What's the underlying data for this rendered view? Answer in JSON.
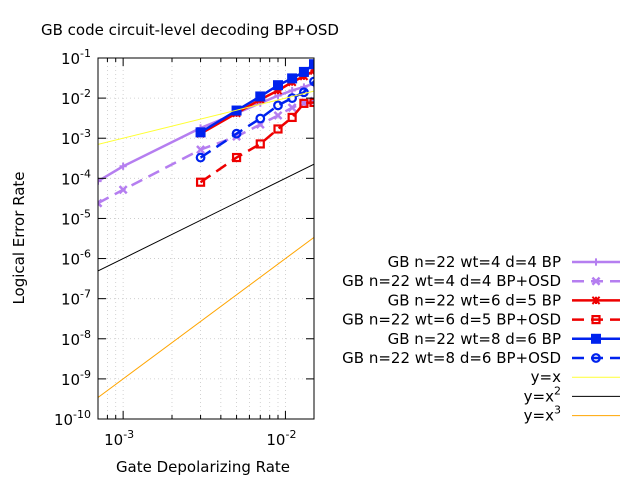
{
  "chart_data": {
    "type": "line",
    "title": "GB code circuit-level decoding BP+OSD",
    "xlabel": "Gate Depolarizing Rate",
    "ylabel": "Logical Error Rate",
    "xscale": "log",
    "yscale": "log",
    "xlim": [
      0.0007,
      0.015
    ],
    "ylim": [
      1e-10,
      0.1
    ],
    "grid": true,
    "legend_position": "right",
    "x_ticks": [
      {
        "value": 0.001,
        "base": "10",
        "exp": "-3"
      },
      {
        "value": 0.01,
        "base": "10",
        "exp": "-2"
      }
    ],
    "y_ticks": [
      {
        "value": 1e-10,
        "base": "10",
        "exp": "-10"
      },
      {
        "value": 1e-09,
        "base": "10",
        "exp": "-9"
      },
      {
        "value": 1e-08,
        "base": "10",
        "exp": "-8"
      },
      {
        "value": 1e-07,
        "base": "10",
        "exp": "-7"
      },
      {
        "value": 1e-06,
        "base": "10",
        "exp": "-6"
      },
      {
        "value": 1e-05,
        "base": "10",
        "exp": "-5"
      },
      {
        "value": 0.0001,
        "base": "10",
        "exp": "-4"
      },
      {
        "value": 0.001,
        "base": "10",
        "exp": "-3"
      },
      {
        "value": 0.01,
        "base": "10",
        "exp": "-2"
      },
      {
        "value": 0.1,
        "base": "10",
        "exp": "-1"
      }
    ],
    "series": [
      {
        "name": "GB n=22 wt=4 d=4 BP",
        "color": "#b57ef0",
        "dash": "solid",
        "marker": "plus",
        "x": [
          0.0007,
          0.001,
          0.003,
          0.005,
          0.007,
          0.009,
          0.011,
          0.013,
          0.015
        ],
        "y": [
          8.5e-05,
          0.0002,
          0.0018,
          0.0042,
          0.0075,
          0.0115,
          0.0155,
          0.019,
          0.023
        ]
      },
      {
        "name": "GB n=22 wt=4 d=4 BP+OSD",
        "color": "#b57ef0",
        "dash": "dashed",
        "marker": "cross",
        "x": [
          0.0007,
          0.001,
          0.003,
          0.005,
          0.007,
          0.009,
          0.011,
          0.013,
          0.015
        ],
        "y": [
          2.4e-05,
          5.2e-05,
          0.00052,
          0.0011,
          0.0022,
          0.0037,
          0.0058,
          0.0075,
          0.0085
        ]
      },
      {
        "name": "GB n=22 wt=6 d=5 BP",
        "color": "#ee0000",
        "dash": "solid",
        "marker": "star",
        "x": [
          0.003,
          0.005,
          0.007,
          0.009,
          0.011,
          0.013,
          0.015
        ],
        "y": [
          0.0013,
          0.0042,
          0.0092,
          0.0155,
          0.025,
          0.035,
          0.048
        ]
      },
      {
        "name": "GB n=22 wt=6 d=5 BP+OSD",
        "color": "#ee0000",
        "dash": "dashed",
        "marker": "square-open",
        "x": [
          0.003,
          0.005,
          0.007,
          0.009,
          0.011,
          0.013,
          0.015
        ],
        "y": [
          8e-05,
          0.00033,
          0.00072,
          0.0017,
          0.0033,
          0.0074,
          0.0078
        ]
      },
      {
        "name": "GB n=22 wt=8 d=6 BP",
        "color": "#0022ee",
        "dash": "solid",
        "marker": "square-filled",
        "x": [
          0.003,
          0.005,
          0.007,
          0.009,
          0.011,
          0.013,
          0.015
        ],
        "y": [
          0.0014,
          0.0049,
          0.011,
          0.021,
          0.031,
          0.045,
          0.07
        ]
      },
      {
        "name": "GB n=22 wt=8 d=6 BP+OSD",
        "color": "#0022ee",
        "dash": "dashed",
        "marker": "circle-open",
        "x": [
          0.003,
          0.005,
          0.007,
          0.009,
          0.011,
          0.013,
          0.015
        ],
        "y": [
          0.00033,
          0.0013,
          0.0031,
          0.0066,
          0.01,
          0.014,
          0.026
        ]
      },
      {
        "name": "y=x",
        "label_base": "y=x",
        "label_sup": "",
        "color": "#ffff33",
        "dash": "solid",
        "marker": "none",
        "thin": true,
        "x": [
          0.0007,
          0.015
        ],
        "y": [
          0.0007,
          0.015
        ]
      },
      {
        "name": "y=x^2",
        "label_base": "y=x",
        "label_sup": "2",
        "color": "#000000",
        "dash": "solid",
        "marker": "none",
        "thin": true,
        "x": [
          0.0007,
          0.015
        ],
        "y": [
          4.9e-07,
          0.000225
        ]
      },
      {
        "name": "y=x^3",
        "label_base": "y=x",
        "label_sup": "3",
        "color": "#ffa500",
        "dash": "solid",
        "marker": "none",
        "thin": true,
        "x": [
          0.0007,
          0.015
        ],
        "y": [
          3.43e-10,
          3.375e-06
        ]
      }
    ]
  }
}
